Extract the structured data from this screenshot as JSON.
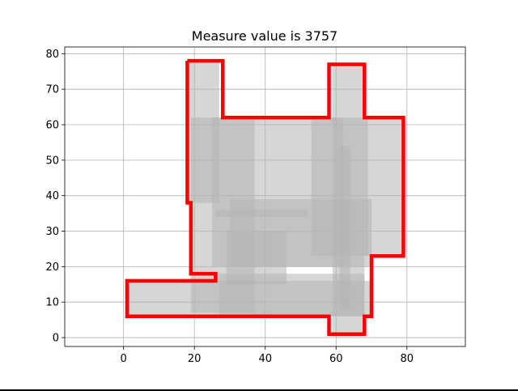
{
  "chart_data": {
    "type": "area",
    "title": "Measure value is 3757",
    "xlabel": "",
    "ylabel": "",
    "xlim": [
      -16.6,
      96.5
    ],
    "ylim": [
      -2.5,
      81.9
    ],
    "xticks": [
      0,
      20,
      40,
      60,
      80
    ],
    "yticks": [
      0,
      10,
      20,
      30,
      40,
      50,
      60,
      70,
      80
    ],
    "grid": true,
    "rectangles": [
      {
        "x0": 18,
        "x1": 27,
        "y0": 38,
        "y1": 78
      },
      {
        "x0": 19,
        "x1": 37,
        "y0": 7,
        "y1": 62
      },
      {
        "x0": 59,
        "x1": 68,
        "y0": 1,
        "y1": 77
      },
      {
        "x0": 53,
        "x1": 69,
        "y0": 23,
        "y1": 62
      },
      {
        "x0": 61,
        "x1": 64,
        "y0": 8,
        "y1": 54
      },
      {
        "x0": 68,
        "x1": 79,
        "y0": 23,
        "y1": 62
      },
      {
        "x0": 30,
        "x1": 70,
        "y0": 20,
        "y1": 39
      },
      {
        "x0": 26,
        "x1": 52,
        "y0": 34,
        "y1": 36
      },
      {
        "x0": 29,
        "x1": 46,
        "y0": 15,
        "y1": 30
      },
      {
        "x0": 1,
        "x1": 70,
        "y0": 6,
        "y1": 16
      },
      {
        "x0": 27,
        "x1": 68,
        "y0": 6,
        "y1": 18
      },
      {
        "x0": 25,
        "x1": 62,
        "y0": 20,
        "y1": 62
      }
    ],
    "outline": [
      [
        18,
        78
      ],
      [
        28,
        78
      ],
      [
        28,
        62
      ],
      [
        58,
        62
      ],
      [
        58,
        77
      ],
      [
        68,
        77
      ],
      [
        68,
        62
      ],
      [
        79,
        62
      ],
      [
        79,
        23
      ],
      [
        70,
        23
      ],
      [
        70,
        6
      ],
      [
        68,
        6
      ],
      [
        68,
        1
      ],
      [
        58,
        1
      ],
      [
        58,
        6
      ],
      [
        1,
        6
      ],
      [
        1,
        16
      ],
      [
        26,
        16
      ],
      [
        26,
        18
      ],
      [
        19,
        18
      ],
      [
        19,
        38
      ],
      [
        18,
        38
      ],
      [
        18,
        78
      ]
    ],
    "colors": {
      "fill": "#b4b4b4",
      "outline": "#ff0000",
      "grid": "#b0b0b0"
    }
  }
}
